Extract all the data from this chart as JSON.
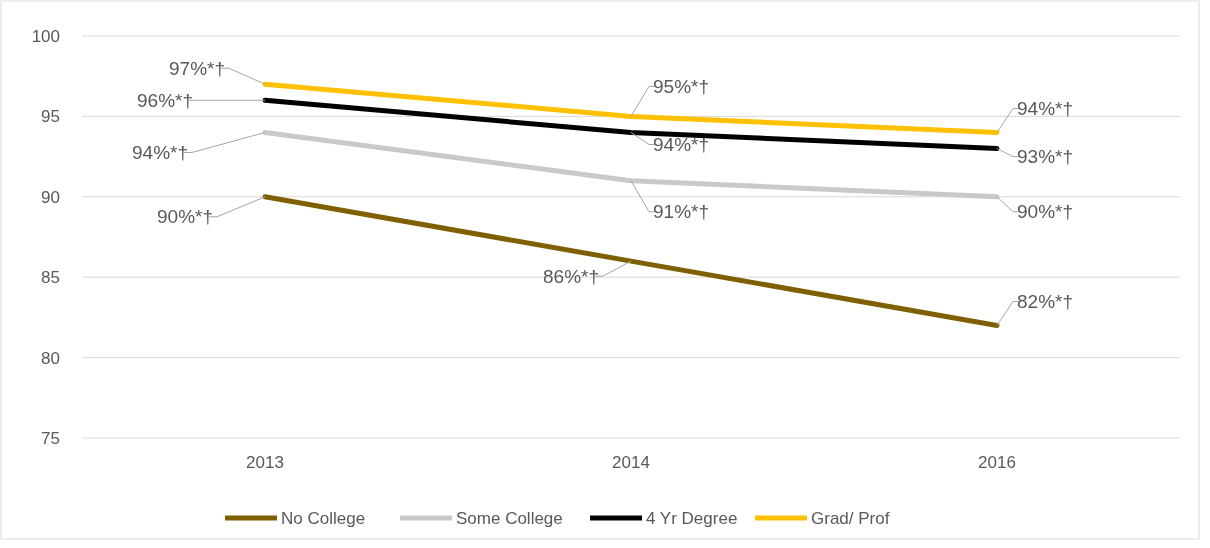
{
  "chart_data": {
    "type": "line",
    "categories": [
      "2013",
      "2014",
      "2016"
    ],
    "series": [
      {
        "name": "No College",
        "color": "#7f6000",
        "values": [
          90,
          86,
          82
        ],
        "value_labels": [
          "90%*†",
          "86%*†",
          "82%*†"
        ]
      },
      {
        "name": "Some College",
        "color": "#c9c9c9",
        "values": [
          94,
          91,
          90
        ],
        "value_labels": [
          "94%*†",
          "91%*†",
          "90%*†"
        ]
      },
      {
        "name": "4 Yr Degree",
        "color": "#000000",
        "values": [
          96,
          94,
          93
        ],
        "value_labels": [
          "96%*†",
          "94%*†",
          "93%*†"
        ]
      },
      {
        "name": "Grad/ Prof",
        "color": "#ffc000",
        "values": [
          97,
          95,
          94
        ],
        "value_labels": [
          "97%*†",
          "95%*†",
          "94%*†"
        ]
      }
    ],
    "ylim": [
      75,
      100
    ],
    "yticks": [
      75,
      80,
      85,
      90,
      95,
      100
    ],
    "grid": "y",
    "legend": "bottom",
    "marker": "none",
    "line_style": "solid"
  }
}
